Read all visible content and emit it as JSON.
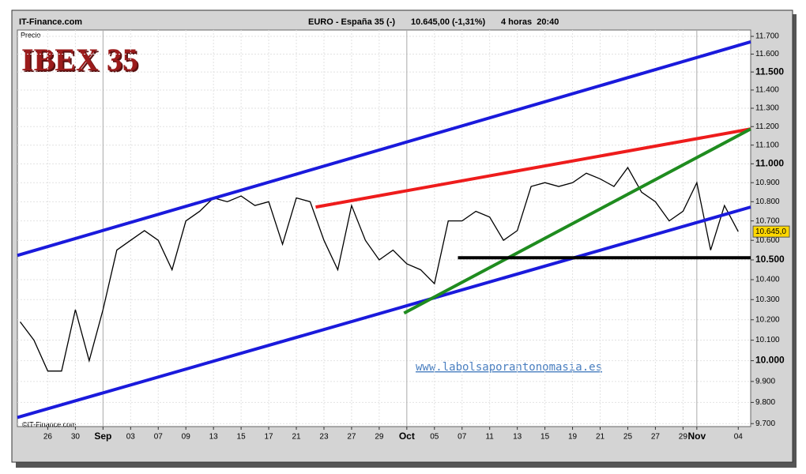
{
  "chart_data": {
    "type": "line",
    "source": "IT-Finance.com",
    "instrument": "EURO - España 35 (-)",
    "quote": "10.645,00 (-1,31%)",
    "period": "4 horas  20:40",
    "y_label": "Precio",
    "title": "IBEX 35",
    "copyright": "©IT-Finance.com",
    "watermark": "www.labolsaporantonomasia.es",
    "log_scale": true,
    "grid": true,
    "color": "#000000",
    "x": [
      -2,
      -1,
      0,
      1,
      2,
      3,
      4,
      5,
      6,
      7,
      8,
      9,
      10,
      11,
      12,
      13,
      14,
      15,
      16,
      17,
      18,
      19,
      20,
      21,
      22,
      23,
      24,
      25,
      26,
      27,
      28,
      29,
      30,
      31,
      32,
      33,
      34,
      35,
      36,
      37,
      38,
      39,
      40,
      41,
      42,
      43,
      44,
      45,
      46,
      47,
      48,
      49,
      50
    ],
    "values": [
      10190,
      10100,
      9950,
      9950,
      10250,
      10000,
      10250,
      10550,
      10600,
      10650,
      10600,
      10450,
      10700,
      10750,
      10820,
      10800,
      10830,
      10780,
      10800,
      10580,
      10820,
      10800,
      10600,
      10450,
      10780,
      10600,
      10500,
      10550,
      10480,
      10450,
      10380,
      10700,
      10700,
      10750,
      10720,
      10600,
      10650,
      10880,
      10900,
      10880,
      10900,
      10950,
      10920,
      10880,
      10980,
      10850,
      10800,
      10700,
      10750,
      10900,
      10550,
      10780,
      10645
    ],
    "last_price": {
      "value": 10645,
      "label": "10.645,0"
    },
    "xlim": [
      -2.2,
      50.9
    ],
    "xticks": [
      {
        "value": 0,
        "label": "26"
      },
      {
        "value": 2,
        "label": "30"
      },
      {
        "value": 4,
        "label": "Sep"
      },
      {
        "value": 6,
        "label": "03"
      },
      {
        "value": 8,
        "label": "07"
      },
      {
        "value": 10,
        "label": "09"
      },
      {
        "value": 12,
        "label": "13"
      },
      {
        "value": 14,
        "label": "15"
      },
      {
        "value": 16,
        "label": "17"
      },
      {
        "value": 18,
        "label": "21"
      },
      {
        "value": 20,
        "label": "23"
      },
      {
        "value": 22,
        "label": "27"
      },
      {
        "value": 24,
        "label": "29"
      },
      {
        "value": 26,
        "label": "Oct"
      },
      {
        "value": 28,
        "label": "05"
      },
      {
        "value": 30,
        "label": "07"
      },
      {
        "value": 32,
        "label": "11"
      },
      {
        "value": 34,
        "label": "13"
      },
      {
        "value": 36,
        "label": "15"
      },
      {
        "value": 38,
        "label": "19"
      },
      {
        "value": 40,
        "label": "21"
      },
      {
        "value": 42,
        "label": "25"
      },
      {
        "value": 44,
        "label": "27"
      },
      {
        "value": 46,
        "label": "29"
      },
      {
        "value": 47,
        "label": "Nov"
      },
      {
        "value": 50,
        "label": "04"
      }
    ],
    "ylim": [
      9686,
      11736
    ],
    "yticks": [
      {
        "value": 9700,
        "label": "9.700"
      },
      {
        "value": 9800,
        "label": "9.800"
      },
      {
        "value": 9900,
        "label": "9.900"
      },
      {
        "value": 10000,
        "label": "10.000"
      },
      {
        "value": 10100,
        "label": "10.100"
      },
      {
        "value": 10200,
        "label": "10.200"
      },
      {
        "value": 10300,
        "label": "10.300"
      },
      {
        "value": 10400,
        "label": "10.400"
      },
      {
        "value": 10500,
        "label": "10.500"
      },
      {
        "value": 10600,
        "label": "10.600"
      },
      {
        "value": 10700,
        "label": "10.700"
      },
      {
        "value": 10800,
        "label": "10.800"
      },
      {
        "value": 10900,
        "label": "10.900"
      },
      {
        "value": 11000,
        "label": "11.000"
      },
      {
        "value": 11100,
        "label": "11.100"
      },
      {
        "value": 11200,
        "label": "11.200"
      },
      {
        "value": 11300,
        "label": "11.300"
      },
      {
        "value": 11400,
        "label": "11.400"
      },
      {
        "value": 11500,
        "label": "11.500"
      },
      {
        "value": 11600,
        "label": "11.600"
      },
      {
        "value": 11700,
        "label": "11.700"
      }
    ],
    "trendlines": [
      {
        "color": "#1a1adc",
        "x": [
          -2.2,
          50.9
        ],
        "values": [
          10523,
          11669
        ]
      },
      {
        "color": "#1a1adc",
        "x": [
          -2.2,
          50.9
        ],
        "values": [
          9729,
          10772
        ]
      },
      {
        "color": "#ee1c1c",
        "x": [
          19.4,
          50.9
        ],
        "values": [
          10772,
          11187
        ]
      },
      {
        "color": "#1f8c1f",
        "x": [
          25.8,
          50.9
        ],
        "values": [
          10233,
          11187
        ]
      },
      {
        "color": "#000000",
        "x": [
          29.7,
          50.9
        ],
        "values": [
          10511,
          10511
        ]
      }
    ]
  }
}
